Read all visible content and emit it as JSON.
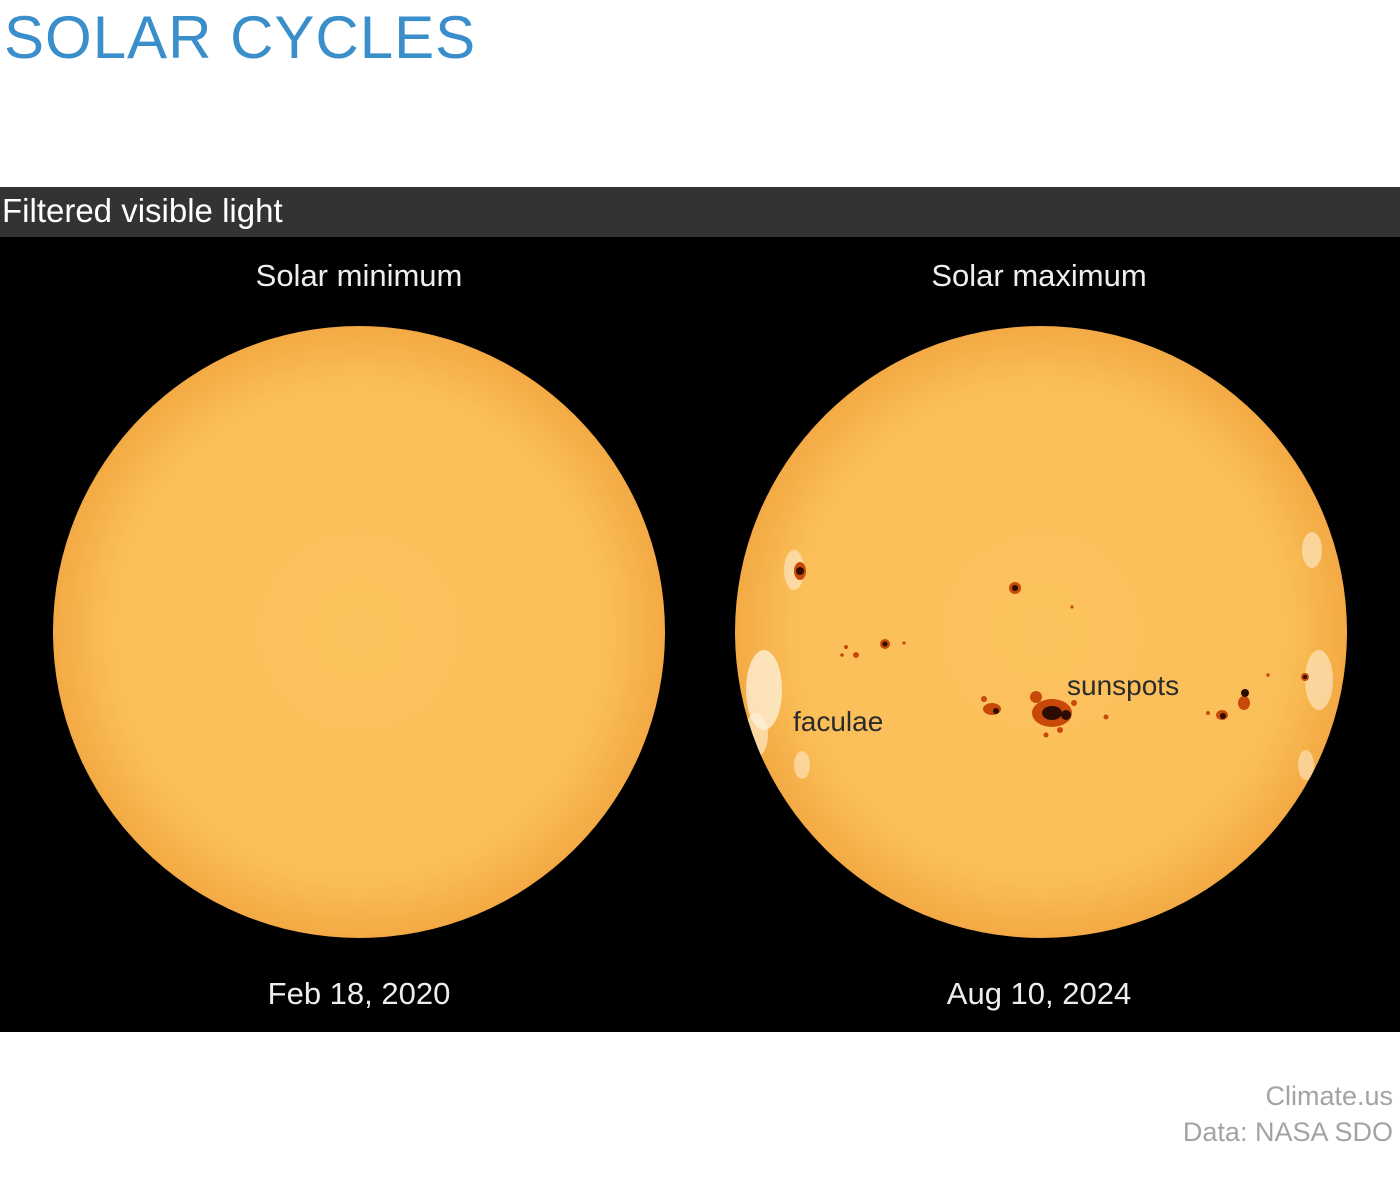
{
  "title": "SOLAR CYCLES",
  "band_label": "Filtered visible light",
  "panels": [
    {
      "heading": "Solar minimum",
      "date": "Feb 18, 2020"
    },
    {
      "heading": "Solar maximum",
      "date": "Aug 10, 2024",
      "labels": {
        "sunspots": "sunspots",
        "faculae": "faculae"
      }
    }
  ],
  "credits": {
    "source": "Climate.us",
    "data": "Data: NASA SDO"
  },
  "colors": {
    "title": "#3a8ec9",
    "band": "#333333",
    "sun_surface": "#fbbf59",
    "sun_limb": "#f1a43c",
    "sunspot_umbra": "#2a0d00",
    "sunspot_penumbra": "#c8480a",
    "faculae": "#fff3df"
  }
}
